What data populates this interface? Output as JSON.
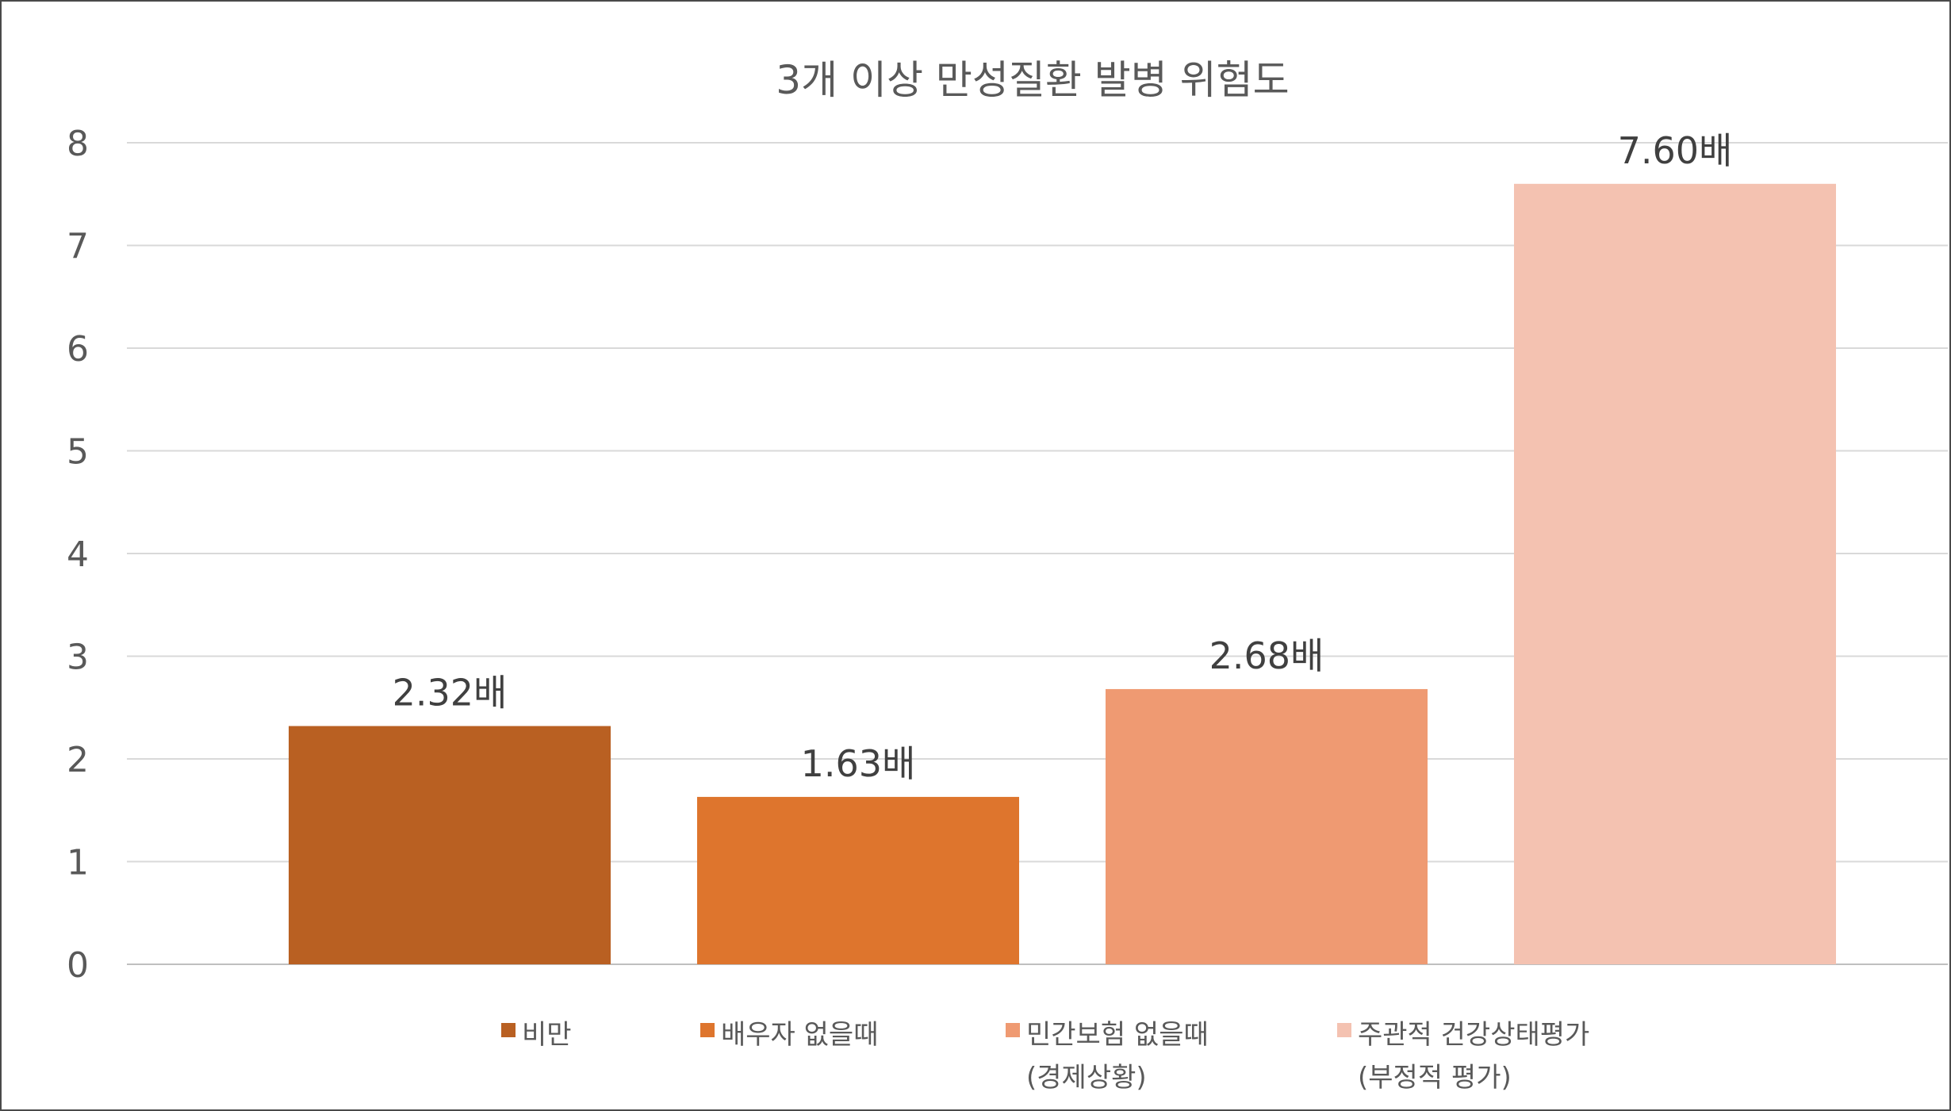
{
  "chart_data": {
    "type": "bar",
    "title": "3개 이상 만성질환 발병 위험도",
    "categories": [
      "비만",
      "배우자 없을때",
      "민간보험 없을때\n(경제상황)",
      "주관적 건강상태평가\n(부정적 평가)"
    ],
    "values": [
      2.32,
      1.63,
      2.68,
      7.6
    ],
    "data_labels": [
      "2.32배",
      "1.63배",
      "2.68배",
      "7.60배"
    ],
    "colors": [
      "#b96022",
      "#de752d",
      "#ef9a72",
      "#f4c2b1"
    ],
    "ylim": [
      0,
      8
    ],
    "yticks": [
      "0",
      "1",
      "2",
      "3",
      "4",
      "5",
      "6",
      "7",
      "8"
    ],
    "xlabel": "",
    "ylabel": "",
    "grid": true,
    "legend_position": "bottom"
  }
}
